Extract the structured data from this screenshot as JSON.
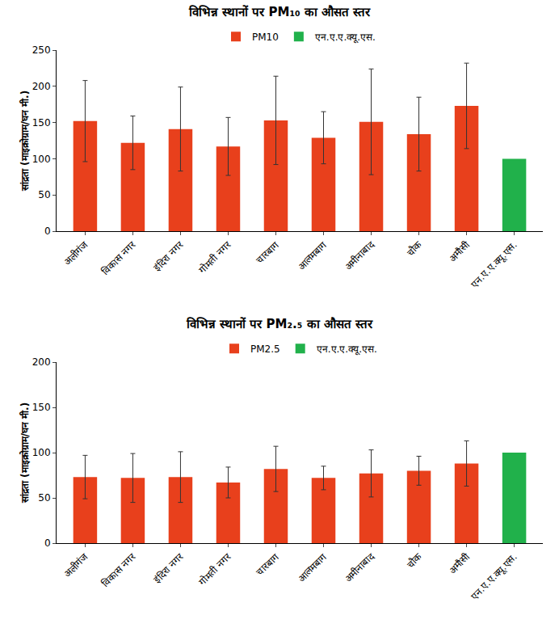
{
  "chart_data": [
    {
      "type": "bar",
      "title": "विभिन्न स्थानों पर PM₁₀ का औसत स्तर",
      "y_label": "सांद्रता (माइक्रोग्राम/घन मी.)",
      "categories": [
        "अलीगंज",
        "विकास नगर",
        "इंदिरा नगर",
        "गोमती नगर",
        "चारबाग",
        "आलमबाग",
        "अमीनाबाद",
        "चौक",
        "अमौसी",
        "एन.ए.ए.क्यू.एस."
      ],
      "series": [
        {
          "name": "PM10",
          "color": "#e8401c",
          "values": [
            152,
            122,
            141,
            117,
            153,
            129,
            151,
            134,
            173,
            null
          ],
          "errors": [
            56,
            37,
            58,
            40,
            61,
            36,
            73,
            51,
            59,
            null
          ]
        },
        {
          "name": "एन.ए.ए.क्यू.एस.",
          "color": "#21b14b",
          "values": [
            null,
            null,
            null,
            null,
            null,
            null,
            null,
            null,
            null,
            100
          ]
        }
      ],
      "ylim": [
        0,
        250
      ],
      "yticks": [
        0,
        50,
        100,
        150,
        200,
        250
      ],
      "grid": false,
      "legend": "top"
    },
    {
      "type": "bar",
      "title": "विभिन्न स्थानों पर PM₂.₅ का औसत स्तर",
      "y_label": "सांद्रता (माइक्रोग्राम/घन मी.)",
      "categories": [
        "अलीगंज",
        "विकास नगर",
        "इंदिरा नगर",
        "गोमती नगर",
        "चारबाग",
        "आलमबाग",
        "अमीनाबाद",
        "चौक",
        "अमौसी",
        "एन.ए.ए.क्यू.एस."
      ],
      "series": [
        {
          "name": "PM2.5",
          "color": "#e8401c",
          "values": [
            73,
            72,
            73,
            67,
            82,
            72,
            77,
            80,
            88,
            null
          ],
          "errors": [
            24,
            27,
            28,
            17,
            25,
            13,
            26,
            16,
            25,
            null
          ]
        },
        {
          "name": "एन.ए.ए.क्यू.एस.",
          "color": "#21b14b",
          "values": [
            null,
            null,
            null,
            null,
            null,
            null,
            null,
            null,
            null,
            100
          ]
        }
      ],
      "ylim": [
        0,
        200
      ],
      "yticks": [
        0,
        50,
        100,
        150,
        200
      ],
      "grid": false,
      "legend": "top"
    }
  ]
}
